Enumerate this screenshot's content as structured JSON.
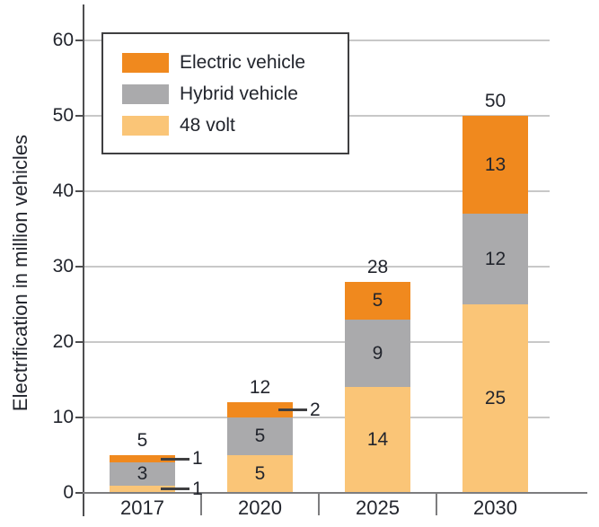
{
  "chart_data": {
    "type": "bar",
    "stacked": true,
    "title": "",
    "xlabel": "",
    "ylabel": "Electrification in million vehicles",
    "categories": [
      "2017",
      "2020",
      "2025",
      "2030"
    ],
    "series": [
      {
        "name": "Electric vehicle",
        "color": "#f0891e",
        "values": [
          1,
          2,
          5,
          13
        ]
      },
      {
        "name": "Hybrid vehicle",
        "color": "#aaaaac",
        "values": [
          3,
          5,
          9,
          12
        ]
      },
      {
        "name": "48 volt",
        "color": "#fac577",
        "values": [
          1,
          5,
          14,
          25
        ]
      }
    ],
    "totals": [
      5,
      12,
      28,
      50
    ],
    "y_ticks": [
      0,
      10,
      20,
      30,
      40,
      50,
      60
    ],
    "ylim": [
      0,
      60
    ],
    "grid": true,
    "legend_position": "top-left",
    "callout_labels": [
      {
        "category": "2017",
        "series": "Electric vehicle",
        "value": 1
      },
      {
        "category": "2017",
        "series": "48 volt",
        "value": 1
      },
      {
        "category": "2020",
        "series": "Electric vehicle",
        "value": 2
      }
    ],
    "colors": {
      "grid": "#c8c8c8",
      "y_axis": "#4e4e50",
      "x_axis": "#7d7d7f",
      "leader_line": "#3f3f41",
      "text": "#22252d"
    }
  }
}
